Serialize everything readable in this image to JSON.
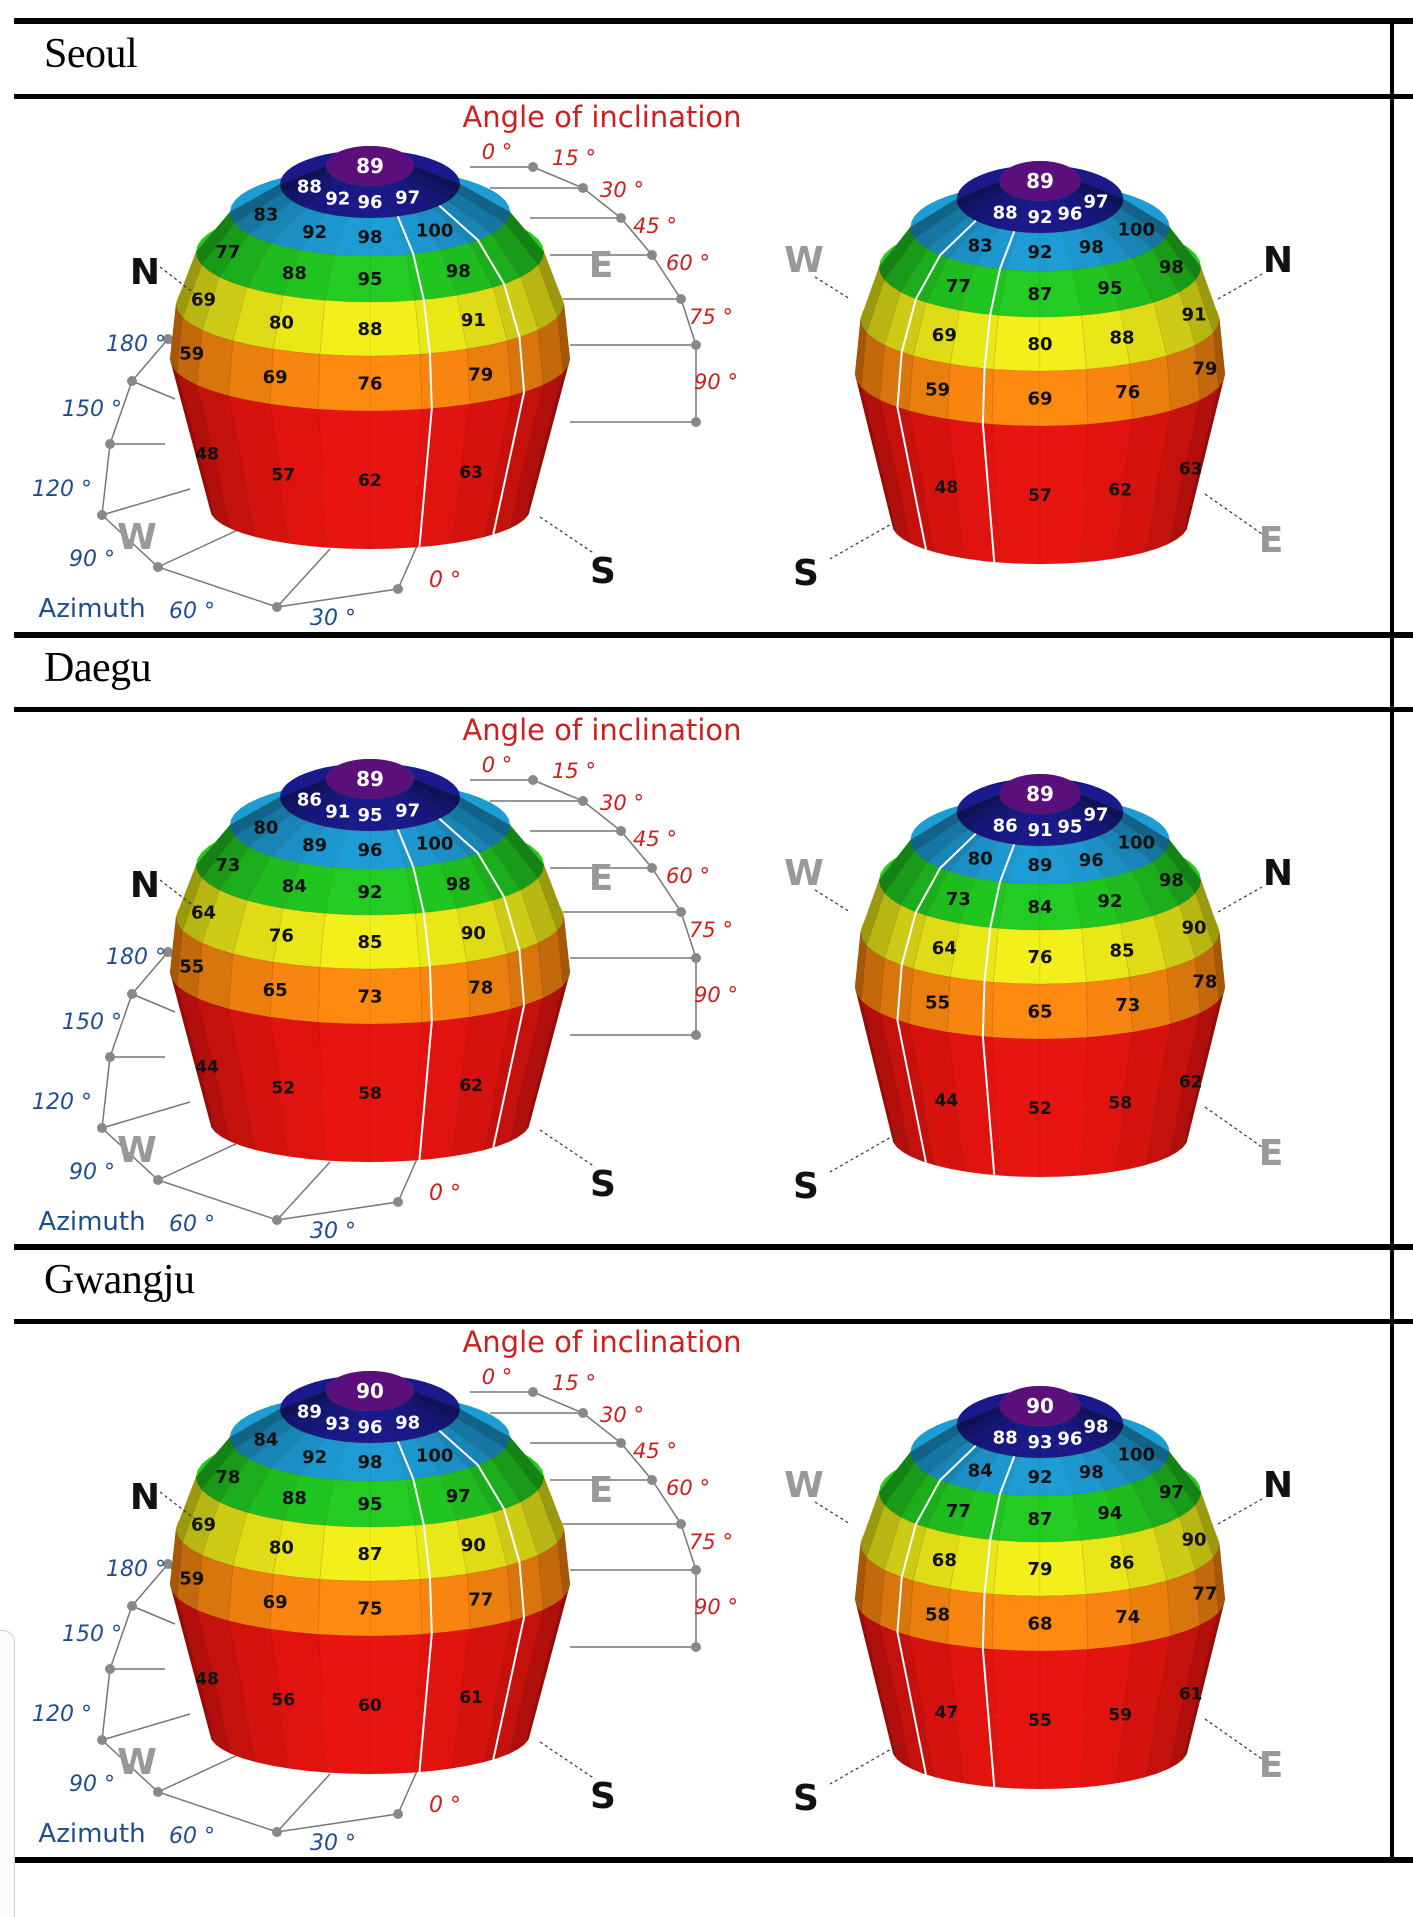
{
  "figure": {
    "title_label": "Angle of inclination",
    "azimuth_label": "Azimuth",
    "inclination_ticks": [
      "0 °",
      "15 °",
      "30 °",
      "45 °",
      "60 °",
      "75 °",
      "90 °"
    ],
    "azimuth_ticks": [
      "180 °",
      "150 °",
      "120 °",
      "90 °",
      "60 °",
      "30 °",
      "0 °"
    ],
    "directions": {
      "north": "N",
      "south": "S",
      "east": "E",
      "west": "W"
    },
    "band_colors": {
      "band_0": "#1a1a8c",
      "band_15": "#1e9cd6",
      "band_30": "#22cc22",
      "band_45": "#f2ef1a",
      "band_60": "#ff8a10",
      "band_75_90": "#e8140f",
      "top_cap": "#5a0f7a"
    },
    "highlight_color": "#ffffff",
    "label_color": "#cc2020",
    "azimuth_color": "#1f4e8c"
  },
  "cities": [
    {
      "name": "Seoul",
      "left_view": {
        "top": "89",
        "band_15": [
          "88",
          "92",
          "96",
          "97"
        ],
        "band_30": [
          "83",
          "92",
          "98",
          "100"
        ],
        "band_45": [
          "77",
          "88",
          "95",
          "98"
        ],
        "band_60": [
          "69",
          "80",
          "88",
          "91"
        ],
        "band_75": [
          "59",
          "69",
          "76",
          "79"
        ],
        "band_90": [
          "48",
          "57",
          "62",
          "63"
        ]
      },
      "right_view": {
        "top": "89",
        "band_15": [
          "97",
          "96",
          "92",
          "88"
        ],
        "band_30": [
          "100",
          "98",
          "92",
          "83"
        ],
        "band_45": [
          "98",
          "95",
          "87",
          "77"
        ],
        "band_60": [
          "91",
          "88",
          "80",
          "69"
        ],
        "band_75": [
          "79",
          "76",
          "69",
          "59"
        ],
        "band_90": [
          "63",
          "62",
          "57",
          "48"
        ]
      }
    },
    {
      "name": "Daegu",
      "left_view": {
        "top": "89",
        "band_15": [
          "86",
          "91",
          "95",
          "97"
        ],
        "band_30": [
          "80",
          "89",
          "96",
          "100"
        ],
        "band_45": [
          "73",
          "84",
          "92",
          "98"
        ],
        "band_60": [
          "64",
          "76",
          "85",
          "90"
        ],
        "band_75": [
          "55",
          "65",
          "73",
          "78"
        ],
        "band_90": [
          "44",
          "52",
          "58",
          "62"
        ]
      },
      "right_view": {
        "top": "89",
        "band_15": [
          "97",
          "95",
          "91",
          "86"
        ],
        "band_30": [
          "100",
          "96",
          "89",
          "80"
        ],
        "band_45": [
          "98",
          "92",
          "84",
          "73"
        ],
        "band_60": [
          "90",
          "85",
          "76",
          "64"
        ],
        "band_75": [
          "78",
          "73",
          "65",
          "55"
        ],
        "band_90": [
          "62",
          "58",
          "52",
          "44"
        ]
      }
    },
    {
      "name": "Gwangju",
      "left_view": {
        "top": "90",
        "band_15": [
          "89",
          "93",
          "96",
          "98"
        ],
        "band_30": [
          "84",
          "92",
          "98",
          "100"
        ],
        "band_45": [
          "78",
          "88",
          "95",
          "97"
        ],
        "band_60": [
          "69",
          "80",
          "87",
          "90"
        ],
        "band_75": [
          "59",
          "69",
          "75",
          "77"
        ],
        "band_90": [
          "48",
          "56",
          "60",
          "61"
        ]
      },
      "right_view": {
        "top": "90",
        "band_15": [
          "98",
          "96",
          "93",
          "88"
        ],
        "band_30": [
          "100",
          "98",
          "92",
          "84"
        ],
        "band_45": [
          "97",
          "94",
          "87",
          "77"
        ],
        "band_60": [
          "90",
          "86",
          "79",
          "68"
        ],
        "band_75": [
          "77",
          "74",
          "68",
          "58"
        ],
        "band_90": [
          "61",
          "59",
          "55",
          "47"
        ]
      }
    }
  ]
}
